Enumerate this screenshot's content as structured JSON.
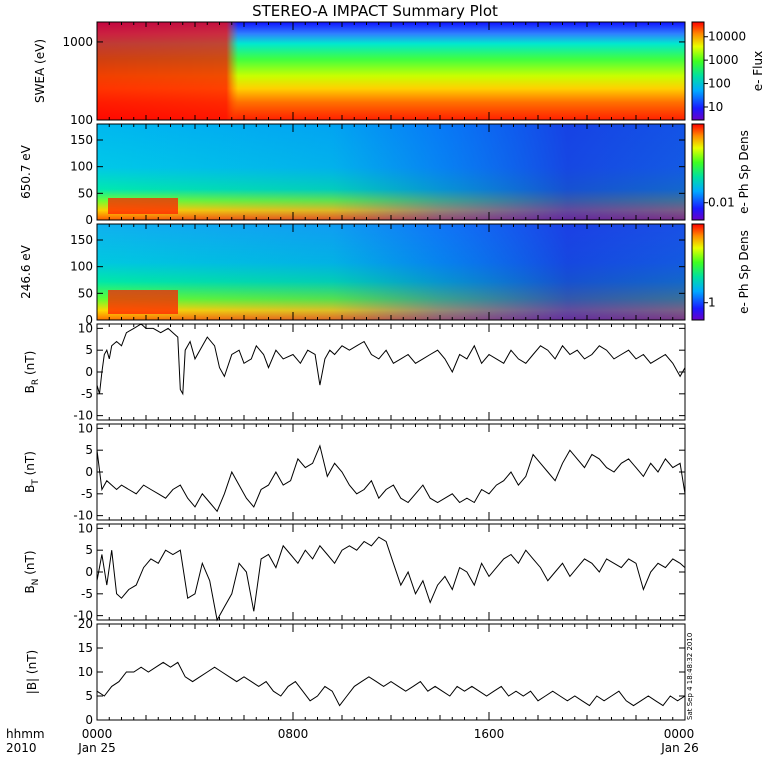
{
  "title": "STEREO-A IMPACT Summary Plot",
  "side_stamp": "Sat Sep  4 18:48:32 2010",
  "x_axis": {
    "header_line1": "hhmm",
    "header_line2": "2010",
    "tick_labels": [
      "0000",
      "0800",
      "1600",
      "0000"
    ],
    "tick_hours": [
      0,
      8,
      16,
      24
    ],
    "date_labels": [
      "Jan 25",
      "Jan 26"
    ],
    "range_hours": [
      0,
      24
    ]
  },
  "colors": {
    "line": "#000000",
    "axis": "#000000"
  },
  "chart_data": [
    {
      "type": "heatmap",
      "id": "swea",
      "ylabel": "SWEA (eV)",
      "yscale": "log",
      "ylim": [
        100,
        1800
      ],
      "yticks": [
        100,
        1000
      ],
      "ytick_labels": [
        "100",
        "1000"
      ],
      "colorbar": {
        "label": "e- Flux",
        "scale": "log",
        "ticks": [
          "10",
          "100",
          "1000",
          "10000"
        ],
        "range": [
          4,
          40000
        ]
      },
      "description_levels": "flux decreasing with energy; enhanced low-energy flux 0000-0330"
    },
    {
      "type": "heatmap",
      "id": "pad650",
      "ylabel": "650.7 eV",
      "ylim": [
        0,
        180
      ],
      "yticks": [
        0,
        50,
        100,
        150
      ],
      "ytick_labels": [
        "0",
        "50",
        "100",
        "150"
      ],
      "colorbar": {
        "label": "e- Ph Sp Dens",
        "ticks": [
          "0.01"
        ]
      }
    },
    {
      "type": "heatmap",
      "id": "pad246",
      "ylabel": "246.6 eV",
      "ylim": [
        0,
        180
      ],
      "yticks": [
        0,
        50,
        100,
        150
      ],
      "ytick_labels": [
        "0",
        "50",
        "100",
        "150"
      ],
      "colorbar": {
        "label": "e- Ph Sp Dens",
        "ticks": [
          "1"
        ]
      }
    },
    {
      "type": "line",
      "id": "br",
      "ylabel_main": "B",
      "ylabel_sub": "R",
      "ylabel_unit": " (nT)",
      "ylim": [
        -11,
        11
      ],
      "ytick_labels": [
        "-10",
        "-5",
        "0",
        "5",
        "10"
      ],
      "yticks": [
        -10,
        -5,
        0,
        5,
        10
      ],
      "x": [
        0,
        0.1,
        0.2,
        0.3,
        0.4,
        0.5,
        0.6,
        0.8,
        1.0,
        1.2,
        1.5,
        1.8,
        2.0,
        2.3,
        2.6,
        2.9,
        3.1,
        3.3,
        3.4,
        3.5,
        3.6,
        3.8,
        4.0,
        4.2,
        4.5,
        4.8,
        5.0,
        5.2,
        5.5,
        5.8,
        6.0,
        6.3,
        6.5,
        6.8,
        7.0,
        7.3,
        7.6,
        8.0,
        8.3,
        8.6,
        8.9,
        9.1,
        9.3,
        9.5,
        9.7,
        10.0,
        10.3,
        10.6,
        10.9,
        11.2,
        11.5,
        11.8,
        12.1,
        12.4,
        12.7,
        13.0,
        13.3,
        13.6,
        13.9,
        14.2,
        14.5,
        14.8,
        15.1,
        15.4,
        15.7,
        16.0,
        16.3,
        16.6,
        16.9,
        17.2,
        17.5,
        17.8,
        18.1,
        18.4,
        18.7,
        19.0,
        19.3,
        19.6,
        19.9,
        20.2,
        20.5,
        20.8,
        21.1,
        21.4,
        21.7,
        22.0,
        22.3,
        22.6,
        22.9,
        23.2,
        23.5,
        23.8,
        24.0
      ],
      "y": [
        -3,
        -5,
        0,
        4,
        5,
        3,
        6,
        7,
        6,
        9,
        10,
        11,
        10,
        10,
        9,
        10,
        9,
        8,
        -4,
        -5,
        5,
        7,
        3,
        5,
        8,
        6,
        1,
        -1,
        4,
        5,
        2,
        3,
        6,
        4,
        1,
        5,
        3,
        4,
        2,
        5,
        4,
        -3,
        3,
        5,
        4,
        6,
        5,
        6,
        7,
        4,
        3,
        5,
        2,
        3,
        4,
        2,
        3,
        4,
        5,
        3,
        0,
        4,
        3,
        6,
        2,
        4,
        3,
        2,
        5,
        3,
        2,
        4,
        6,
        5,
        3,
        6,
        4,
        5,
        3,
        4,
        6,
        5,
        3,
        4,
        5,
        3,
        4,
        2,
        3,
        4,
        2,
        -1,
        1
      ]
    },
    {
      "type": "line",
      "id": "bt",
      "ylabel_main": "B",
      "ylabel_sub": "T",
      "ylabel_unit": " (nT)",
      "ylim": [
        -11,
        11
      ],
      "yticks": [
        -10,
        -5,
        0,
        5,
        10
      ],
      "ytick_labels": [
        "-10",
        "-5",
        "0",
        "5",
        "10"
      ],
      "x": [
        0,
        0.2,
        0.4,
        0.6,
        0.8,
        1.0,
        1.3,
        1.6,
        1.9,
        2.2,
        2.5,
        2.8,
        3.1,
        3.4,
        3.7,
        4.0,
        4.3,
        4.6,
        4.9,
        5.2,
        5.5,
        5.8,
        6.1,
        6.4,
        6.7,
        7.0,
        7.3,
        7.6,
        7.9,
        8.2,
        8.5,
        8.8,
        9.1,
        9.4,
        9.7,
        10.0,
        10.3,
        10.6,
        10.9,
        11.2,
        11.5,
        11.8,
        12.1,
        12.4,
        12.7,
        13.0,
        13.3,
        13.6,
        13.9,
        14.2,
        14.5,
        14.8,
        15.1,
        15.4,
        15.7,
        16.0,
        16.3,
        16.6,
        16.9,
        17.2,
        17.5,
        17.8,
        18.1,
        18.4,
        18.7,
        19.0,
        19.3,
        19.6,
        19.9,
        20.2,
        20.5,
        20.8,
        21.1,
        21.4,
        21.7,
        22.0,
        22.3,
        22.6,
        22.9,
        23.2,
        23.5,
        23.8,
        24.0
      ],
      "y": [
        5,
        -4,
        -2,
        -3,
        -4,
        -3,
        -4,
        -5,
        -3,
        -4,
        -5,
        -6,
        -4,
        -3,
        -6,
        -8,
        -5,
        -7,
        -9,
        -5,
        0,
        -3,
        -6,
        -8,
        -4,
        -3,
        0,
        -3,
        -2,
        3,
        1,
        2,
        6,
        -1,
        2,
        0,
        -3,
        -5,
        -4,
        -2,
        -6,
        -4,
        -3,
        -6,
        -7,
        -5,
        -3,
        -6,
        -7,
        -6,
        -5,
        -7,
        -6,
        -7,
        -4,
        -5,
        -3,
        -2,
        0,
        -3,
        -1,
        4,
        2,
        0,
        -2,
        2,
        5,
        3,
        1,
        4,
        3,
        1,
        0,
        2,
        3,
        1,
        -1,
        2,
        0,
        3,
        1,
        2,
        -5
      ]
    },
    {
      "type": "line",
      "id": "bn",
      "ylabel_main": "B",
      "ylabel_sub": "N",
      "ylabel_unit": " (nT)",
      "ylim": [
        -11,
        11
      ],
      "yticks": [
        -10,
        -5,
        0,
        5,
        10
      ],
      "ytick_labels": [
        "-10",
        "-5",
        "0",
        "5",
        "10"
      ],
      "x": [
        0,
        0.2,
        0.4,
        0.6,
        0.8,
        1.0,
        1.3,
        1.6,
        1.9,
        2.2,
        2.5,
        2.8,
        3.1,
        3.4,
        3.7,
        4.0,
        4.3,
        4.6,
        4.9,
        5.2,
        5.5,
        5.8,
        6.1,
        6.4,
        6.7,
        7.0,
        7.3,
        7.6,
        7.9,
        8.2,
        8.5,
        8.8,
        9.1,
        9.4,
        9.7,
        10.0,
        10.3,
        10.6,
        10.9,
        11.2,
        11.5,
        11.8,
        12.1,
        12.4,
        12.7,
        13.0,
        13.3,
        13.6,
        13.9,
        14.2,
        14.5,
        14.8,
        15.1,
        15.4,
        15.7,
        16.0,
        16.3,
        16.6,
        16.9,
        17.2,
        17.5,
        17.8,
        18.1,
        18.4,
        18.7,
        19.0,
        19.3,
        19.6,
        19.9,
        20.2,
        20.5,
        20.8,
        21.1,
        21.4,
        21.7,
        22.0,
        22.3,
        22.6,
        22.9,
        23.2,
        23.5,
        23.8,
        24.0
      ],
      "y": [
        -2,
        4,
        -3,
        5,
        -5,
        -6,
        -4,
        -3,
        1,
        3,
        2,
        5,
        4,
        5,
        -6,
        -5,
        2,
        -2,
        -11,
        -8,
        -5,
        2,
        0,
        -9,
        3,
        4,
        1,
        6,
        4,
        2,
        5,
        3,
        6,
        4,
        2,
        5,
        6,
        5,
        7,
        6,
        8,
        7,
        2,
        -3,
        0,
        -5,
        -2,
        -7,
        -3,
        -1,
        -4,
        1,
        0,
        -3,
        2,
        -1,
        1,
        3,
        4,
        2,
        5,
        3,
        1,
        -2,
        0,
        2,
        -1,
        1,
        3,
        2,
        0,
        3,
        2,
        1,
        3,
        2,
        -4,
        0,
        2,
        1,
        3,
        2,
        1
      ]
    },
    {
      "type": "line",
      "id": "bmag",
      "ylabel": "|B| (nT)",
      "ylim": [
        0,
        20
      ],
      "yticks": [
        0,
        5,
        10,
        15,
        20
      ],
      "ytick_labels": [
        "0",
        "5",
        "10",
        "15",
        "20"
      ],
      "x": [
        0,
        0.3,
        0.6,
        0.9,
        1.2,
        1.5,
        1.8,
        2.1,
        2.4,
        2.7,
        3.0,
        3.3,
        3.6,
        3.9,
        4.2,
        4.5,
        4.8,
        5.1,
        5.4,
        5.7,
        6.0,
        6.3,
        6.6,
        6.9,
        7.2,
        7.5,
        7.8,
        8.1,
        8.4,
        8.7,
        9.0,
        9.3,
        9.6,
        9.9,
        10.2,
        10.5,
        10.8,
        11.1,
        11.4,
        11.7,
        12.0,
        12.3,
        12.6,
        12.9,
        13.2,
        13.5,
        13.8,
        14.1,
        14.4,
        14.7,
        15.0,
        15.3,
        15.6,
        15.9,
        16.2,
        16.5,
        16.8,
        17.1,
        17.4,
        17.7,
        18.0,
        18.3,
        18.6,
        18.9,
        19.2,
        19.5,
        19.8,
        20.1,
        20.4,
        20.7,
        21.0,
        21.3,
        21.6,
        21.9,
        22.2,
        22.5,
        22.8,
        23.1,
        23.4,
        23.7,
        24.0
      ],
      "y": [
        6,
        5,
        7,
        8,
        10,
        10,
        11,
        10,
        11,
        12,
        11,
        12,
        9,
        8,
        9,
        10,
        11,
        10,
        9,
        8,
        9,
        8,
        7,
        8,
        6,
        5,
        7,
        8,
        6,
        4,
        5,
        7,
        6,
        3,
        5,
        7,
        8,
        9,
        8,
        7,
        8,
        7,
        6,
        7,
        8,
        6,
        7,
        6,
        5,
        7,
        6,
        7,
        6,
        5,
        6,
        7,
        5,
        6,
        5,
        6,
        4,
        5,
        6,
        5,
        4,
        5,
        4,
        3,
        5,
        4,
        5,
        6,
        4,
        3,
        4,
        5,
        4,
        3,
        5,
        4,
        5
      ]
    }
  ]
}
